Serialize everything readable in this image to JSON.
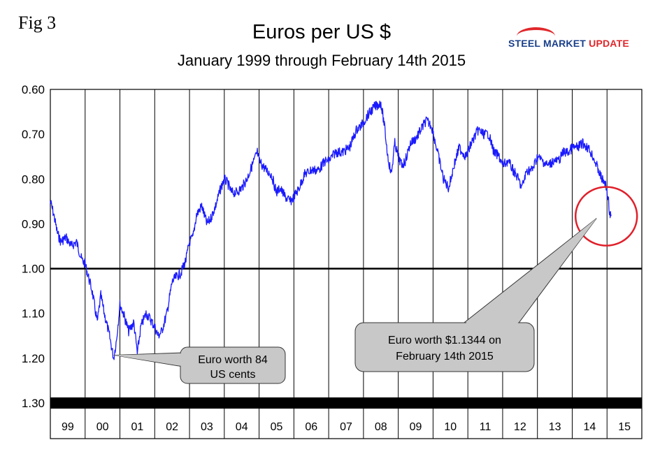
{
  "figure_label": "Fig 3",
  "logo": {
    "part1": "STEEL MARKET",
    "part2": "UPDATE"
  },
  "chart_data": {
    "type": "line",
    "title": "Euros per US $",
    "subtitle": "January 1999 through February 14th 2015",
    "xlabel": "",
    "ylabel": "",
    "y_inverted": true,
    "ylim": [
      0.6,
      1.3
    ],
    "y_ticks": [
      "0.60",
      "0.70",
      "0.80",
      "0.90",
      "1.00",
      "1.10",
      "1.20",
      "1.30"
    ],
    "reference_line": 1.0,
    "x_categories": [
      "99",
      "00",
      "01",
      "02",
      "03",
      "04",
      "05",
      "06",
      "07",
      "08",
      "09",
      "10",
      "11",
      "12",
      "13",
      "14",
      "15"
    ],
    "series": [
      {
        "name": "Euros per US $",
        "color": "#1a1aff",
        "x": [
          1999.0,
          1999.1,
          1999.2,
          1999.3,
          1999.45,
          1999.6,
          1999.75,
          1999.9,
          2000.0,
          2000.1,
          2000.2,
          2000.35,
          2000.45,
          2000.55,
          2000.7,
          2000.82,
          2000.9,
          2001.0,
          2001.1,
          2001.25,
          2001.4,
          2001.5,
          2001.6,
          2001.75,
          2001.85,
          2002.0,
          2002.1,
          2002.2,
          2002.35,
          2002.5,
          2002.6,
          2002.75,
          2002.9,
          2003.0,
          2003.1,
          2003.2,
          2003.35,
          2003.5,
          2003.6,
          2003.75,
          2003.9,
          2004.0,
          2004.1,
          2004.2,
          2004.35,
          2004.5,
          2004.65,
          2004.8,
          2004.95,
          2005.0,
          2005.2,
          2005.35,
          2005.5,
          2005.6,
          2005.75,
          2005.9,
          2006.0,
          2006.15,
          2006.3,
          2006.5,
          2006.7,
          2006.9,
          2007.0,
          2007.2,
          2007.4,
          2007.6,
          2007.8,
          2007.95,
          2008.1,
          2008.3,
          2008.5,
          2008.6,
          2008.7,
          2008.8,
          2008.9,
          2009.0,
          2009.1,
          2009.2,
          2009.35,
          2009.5,
          2009.65,
          2009.8,
          2009.95,
          2010.1,
          2010.3,
          2010.45,
          2010.6,
          2010.75,
          2010.85,
          2010.95,
          2011.1,
          2011.3,
          2011.45,
          2011.6,
          2011.75,
          2011.9,
          2012.0,
          2012.15,
          2012.3,
          2012.45,
          2012.55,
          2012.7,
          2012.85,
          2013.0,
          2013.15,
          2013.3,
          2013.45,
          2013.6,
          2013.75,
          2013.9,
          2014.0,
          2014.15,
          2014.3,
          2014.45,
          2014.6,
          2014.75,
          2014.85,
          2014.95,
          2015.03,
          2015.08,
          2015.12
        ],
        "values": [
          0.85,
          0.88,
          0.92,
          0.94,
          0.93,
          0.95,
          0.94,
          0.98,
          0.99,
          1.02,
          1.05,
          1.12,
          1.06,
          1.1,
          1.15,
          1.2,
          1.16,
          1.08,
          1.1,
          1.14,
          1.12,
          1.19,
          1.13,
          1.1,
          1.11,
          1.13,
          1.15,
          1.14,
          1.1,
          1.03,
          1.02,
          1.01,
          0.98,
          0.94,
          0.93,
          0.88,
          0.86,
          0.9,
          0.89,
          0.86,
          0.82,
          0.8,
          0.81,
          0.83,
          0.83,
          0.82,
          0.8,
          0.77,
          0.74,
          0.76,
          0.78,
          0.79,
          0.83,
          0.82,
          0.84,
          0.85,
          0.84,
          0.82,
          0.79,
          0.78,
          0.78,
          0.76,
          0.76,
          0.74,
          0.74,
          0.73,
          0.69,
          0.68,
          0.66,
          0.64,
          0.63,
          0.68,
          0.75,
          0.79,
          0.72,
          0.75,
          0.77,
          0.76,
          0.72,
          0.71,
          0.69,
          0.67,
          0.68,
          0.73,
          0.8,
          0.82,
          0.77,
          0.73,
          0.74,
          0.75,
          0.72,
          0.69,
          0.7,
          0.7,
          0.74,
          0.75,
          0.77,
          0.76,
          0.78,
          0.8,
          0.82,
          0.78,
          0.78,
          0.75,
          0.76,
          0.77,
          0.76,
          0.76,
          0.74,
          0.74,
          0.73,
          0.73,
          0.72,
          0.73,
          0.75,
          0.78,
          0.8,
          0.81,
          0.84,
          0.88,
          0.88
        ]
      }
    ],
    "annotations": [
      {
        "lines": [
          "Euro worth 84",
          "US cents"
        ],
        "points_to": {
          "x": 2000.9,
          "y": 1.19
        }
      },
      {
        "lines": [
          "Euro worth $1.1344 on",
          "February 14th 2015"
        ],
        "points_to": {
          "x": 2015.1,
          "y": 0.88
        }
      }
    ]
  }
}
